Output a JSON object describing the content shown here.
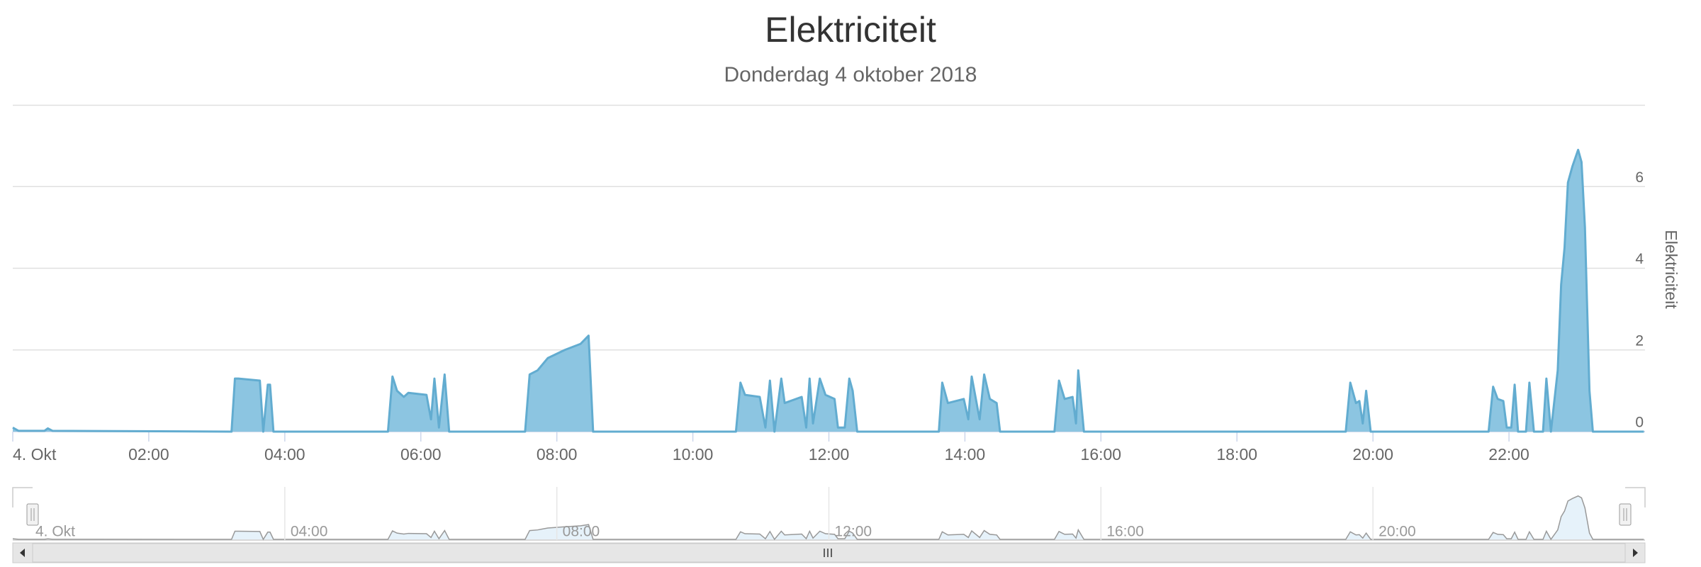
{
  "chart_data": {
    "type": "area",
    "title": "Elektriciteit",
    "subtitle": "Donderdag 4 oktober 2018",
    "y_label": "Elektriciteit",
    "color": "#8cc5e1",
    "line_color": "#62acd0",
    "grid": true,
    "xlim": [
      "00:00",
      "24:00"
    ],
    "xticks": [
      {
        "value": "00:00",
        "label": "4. Okt"
      },
      "02:00",
      "04:00",
      "06:00",
      "08:00",
      "10:00",
      "12:00",
      "14:00",
      "16:00",
      "18:00",
      "20:00",
      "22:00"
    ],
    "ylim": [
      0,
      8
    ],
    "yticks": [
      0,
      2,
      4,
      6
    ],
    "x": [
      "00:00",
      "00:05",
      "00:28",
      "00:31",
      "00:35",
      "03:13",
      "03:16",
      "03:19",
      "03:38",
      "03:41",
      "03:45",
      "03:47",
      "03:50",
      "05:31",
      "05:35",
      "05:39",
      "05:45",
      "05:49",
      "06:05",
      "06:09",
      "06:12",
      "06:16",
      "06:21",
      "06:25",
      "07:32",
      "07:36",
      "07:43",
      "07:52",
      "08:07",
      "08:21",
      "08:28",
      "08:32",
      "10:38",
      "10:42",
      "10:46",
      "10:59",
      "11:04",
      "11:08",
      "11:12",
      "11:18",
      "11:21",
      "11:36",
      "11:40",
      "11:43",
      "11:46",
      "11:52",
      "11:57",
      "12:05",
      "12:08",
      "12:14",
      "12:18",
      "12:21",
      "12:25",
      "13:37",
      "13:40",
      "13:45",
      "13:59",
      "14:03",
      "14:06",
      "14:13",
      "14:17",
      "14:22",
      "14:28",
      "14:31",
      "15:19",
      "15:23",
      "15:28",
      "15:35",
      "15:38",
      "15:40",
      "15:45",
      "19:36",
      "19:40",
      "19:45",
      "19:48",
      "19:51",
      "19:54",
      "19:58",
      "21:42",
      "21:46",
      "21:50",
      "21:55",
      "21:58",
      "22:02",
      "22:05",
      "22:08",
      "22:15",
      "22:18",
      "22:22",
      "22:30",
      "22:33",
      "22:37",
      "22:39",
      "22:43",
      "22:46",
      "22:49",
      "22:52",
      "22:56",
      "23:01",
      "23:04",
      "23:07",
      "23:11",
      "23:14",
      "23:59"
    ],
    "values": [
      0.1,
      0.02,
      0.02,
      0.08,
      0.02,
      0,
      1.3,
      1.3,
      1.25,
      0,
      1.15,
      1.15,
      0,
      0,
      1.35,
      1.0,
      0.85,
      0.95,
      0.9,
      0.3,
      1.3,
      0.1,
      1.4,
      0,
      0,
      1.4,
      1.5,
      1.8,
      2.0,
      2.15,
      2.35,
      0,
      0,
      1.2,
      0.9,
      0.85,
      0.1,
      1.25,
      0,
      1.3,
      0.7,
      0.85,
      0.1,
      1.3,
      0.2,
      1.3,
      0.9,
      0.8,
      0.1,
      0.1,
      1.3,
      1.0,
      0,
      0,
      1.2,
      0.7,
      0.8,
      0.3,
      1.35,
      0.3,
      1.4,
      0.8,
      0.7,
      0,
      0,
      1.25,
      0.8,
      0.85,
      0.2,
      1.5,
      0,
      0,
      1.2,
      0.7,
      0.75,
      0.2,
      1.0,
      0,
      0,
      1.1,
      0.8,
      0.75,
      0.1,
      0.1,
      1.15,
      0,
      0,
      1.2,
      0,
      0,
      1.3,
      0,
      0.5,
      1.5,
      3.6,
      4.5,
      6.1,
      6.5,
      6.9,
      6.6,
      5.0,
      1.0,
      0,
      0
    ]
  }
}
